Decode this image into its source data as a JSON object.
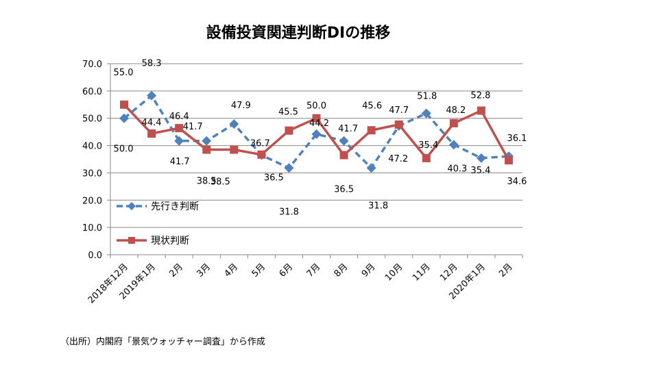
{
  "chart_data": {
    "type": "line",
    "title": "設備投資関連判断DIの推移",
    "xlabel": "",
    "ylabel": "",
    "ylim": [
      0,
      70
    ],
    "yticks": [
      "0.0",
      "10.0",
      "20.0",
      "30.0",
      "40.0",
      "50.0",
      "60.0",
      "70.0"
    ],
    "grid": true,
    "legend_position": "bottom-left inside",
    "categories": [
      "2018年12月",
      "2019年1月",
      "2月",
      "3月",
      "4月",
      "5月",
      "6月",
      "7月",
      "8月",
      "9月",
      "10月",
      "11月",
      "12月",
      "2020年1月",
      "2月"
    ],
    "series": [
      {
        "name": "先行き判断",
        "color": "#4F81BD",
        "style": "dashed",
        "marker": "diamond",
        "values": [
          50.0,
          58.3,
          41.7,
          41.7,
          47.9,
          36.5,
          31.8,
          44.2,
          41.7,
          31.8,
          47.2,
          51.8,
          40.3,
          35.4,
          36.1
        ]
      },
      {
        "name": "現状判断",
        "color": "#C0504D",
        "style": "solid",
        "marker": "square",
        "values": [
          55.0,
          44.4,
          46.4,
          38.5,
          38.5,
          36.7,
          45.5,
          50.0,
          36.5,
          45.6,
          47.7,
          35.4,
          48.2,
          52.8,
          34.6
        ]
      }
    ]
  },
  "source_note": "（出所）内閣府「景気ウォッチャー調査」から作成"
}
